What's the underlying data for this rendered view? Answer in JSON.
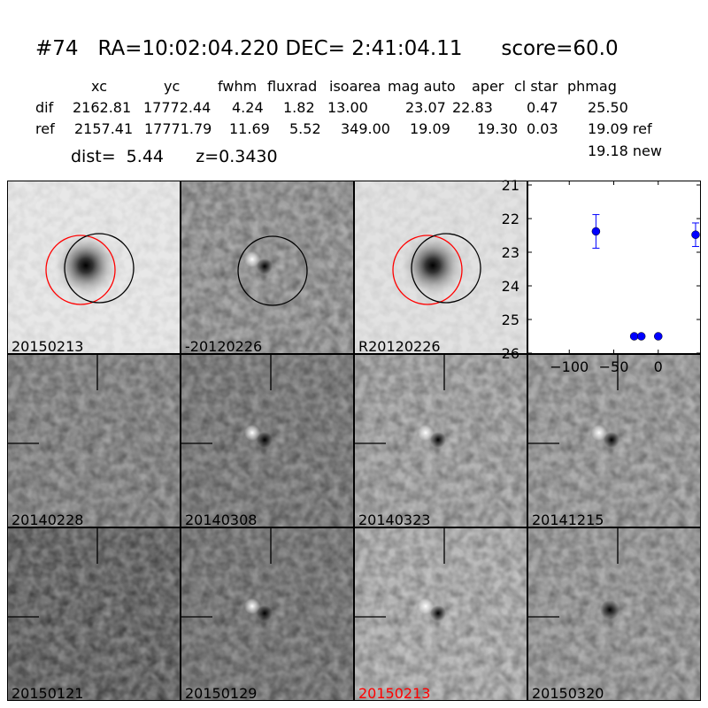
{
  "title": "#74   RA=10:02:04.220 DEC= 2:41:04.11      score=60.0",
  "table": {
    "headers": [
      "xc",
      "yc",
      "fwhm",
      "fluxrad",
      "isoarea",
      "mag auto",
      "aper",
      "cl star",
      "phmag"
    ],
    "rows": [
      {
        "label": "dif",
        "values": [
          "2162.81",
          "17772.44",
          "4.24",
          "1.82",
          "13.00",
          "23.07",
          "22.83",
          "0.47",
          "25.50"
        ]
      },
      {
        "label": "ref",
        "values": [
          "2157.41",
          "17771.79",
          "11.69",
          "5.52",
          "349.00",
          "19.09",
          "19.30",
          "0.03",
          "19.09 ref"
        ]
      }
    ],
    "extra": "19.18 new"
  },
  "dist_line": "dist=  5.44      z=0.3430",
  "stamps": [
    {
      "label": "20150213",
      "label_color": "#000000"
    },
    {
      "label": "-20120226",
      "label_color": "#000000"
    },
    {
      "label": "R20120226",
      "label_color": "#000000"
    },
    null,
    {
      "label": "20140228",
      "label_color": "#000000"
    },
    {
      "label": "20140308",
      "label_color": "#000000"
    },
    {
      "label": "20140323",
      "label_color": "#000000"
    },
    {
      "label": "20141215",
      "label_color": "#000000"
    },
    {
      "label": "20150121",
      "label_color": "#000000"
    },
    {
      "label": "20150129",
      "label_color": "#000000"
    },
    {
      "label": "20150213",
      "label_color": "#ff0000"
    },
    {
      "label": "20150320",
      "label_color": "#000000"
    }
  ],
  "chart_data": {
    "type": "scatter",
    "xlim": [
      -147,
      48
    ],
    "ylim": [
      26,
      21
    ],
    "y_inverted": true,
    "xticks": [
      -100,
      -50,
      0
    ],
    "xtick_labels": [
      "−100",
      "−50",
      "0"
    ],
    "yticks": [
      21,
      22,
      23,
      24,
      25,
      26
    ],
    "ytick_labels": [
      "21",
      "22",
      "23",
      "24",
      "25",
      "26"
    ],
    "marker_color": "#0000ff",
    "points": [
      {
        "x": -70,
        "y": 22.38,
        "err": 0.5,
        "upper_limit": false
      },
      {
        "x": -27,
        "y": 25.5,
        "err": 0.05,
        "upper_limit": true
      },
      {
        "x": -19,
        "y": 25.5,
        "err": 0.05,
        "upper_limit": true
      },
      {
        "x": 0,
        "y": 25.5,
        "err": 0.05,
        "upper_limit": true
      },
      {
        "x": 42,
        "y": 22.48,
        "err": 0.35,
        "upper_limit": false
      }
    ]
  }
}
